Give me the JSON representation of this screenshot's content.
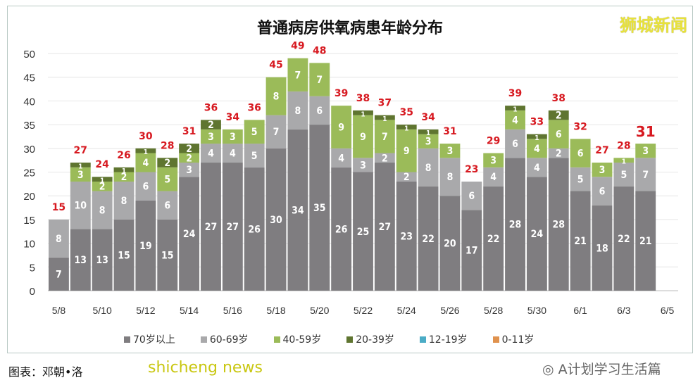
{
  "logo_text": "狮城新闻",
  "credit": "图表：邓朝•洛",
  "watermark": "shicheng news",
  "wechat_account": "A计划学习生活篇",
  "colors": {
    "70+": "#7f7d80",
    "60-69": "#a9a9ab",
    "40-59": "#9bbb59",
    "20-39": "#5f7530",
    "12-19": "#4bacc6",
    "0-11": "#e0924e",
    "total": "#d71920"
  },
  "chart_data": {
    "type": "bar",
    "stacked": true,
    "title": "普通病房供氧病患年龄分布",
    "categories": [
      "5/8",
      "5/9",
      "5/10",
      "5/11",
      "5/12",
      "5/13",
      "5/14",
      "5/15",
      "5/16",
      "5/17",
      "5/18",
      "5/19",
      "5/20",
      "5/21",
      "5/22",
      "5/23",
      "5/24",
      "5/25",
      "5/26",
      "5/27",
      "5/28",
      "5/29",
      "5/30",
      "5/31",
      "6/1",
      "6/2",
      "6/3",
      "6/4",
      "6/5"
    ],
    "x_tick_labels": [
      "5/8",
      "5/10",
      "5/12",
      "5/14",
      "5/16",
      "5/18",
      "5/20",
      "5/22",
      "5/24",
      "5/26",
      "5/28",
      "5/30",
      "6/1",
      "6/3",
      "6/5"
    ],
    "series": [
      {
        "name": "70岁以上",
        "values": [
          7,
          13,
          13,
          15,
          19,
          15,
          24,
          27,
          27,
          26,
          30,
          34,
          35,
          26,
          25,
          27,
          23,
          22,
          20,
          17,
          22,
          28,
          24,
          28,
          21,
          18,
          22,
          21,
          null
        ]
      },
      {
        "name": "60-69岁",
        "values": [
          8,
          10,
          8,
          8,
          6,
          6,
          3,
          4,
          4,
          5,
          7,
          8,
          6,
          4,
          3,
          2,
          2,
          8,
          8,
          6,
          4,
          6,
          4,
          2,
          5,
          6,
          5,
          7,
          null
        ]
      },
      {
        "name": "40-59岁",
        "values": [
          0,
          3,
          2,
          2,
          4,
          5,
          2,
          3,
          3,
          5,
          8,
          7,
          7,
          9,
          9,
          7,
          9,
          3,
          3,
          0,
          3,
          4,
          4,
          6,
          6,
          3,
          1,
          3,
          null
        ]
      },
      {
        "name": "20-39岁",
        "values": [
          0,
          1,
          1,
          1,
          1,
          2,
          2,
          2,
          0,
          0,
          0,
          0,
          0,
          0,
          1,
          1,
          1,
          1,
          0,
          0,
          0,
          1,
          1,
          2,
          0,
          0,
          0,
          0,
          null
        ]
      },
      {
        "name": "12-19岁",
        "values": [
          0,
          0,
          0,
          0,
          0,
          0,
          0,
          0,
          0,
          0,
          0,
          0,
          0,
          0,
          0,
          0,
          0,
          0,
          0,
          0,
          0,
          0,
          0,
          0,
          0,
          0,
          0,
          0,
          null
        ]
      },
      {
        "name": "0-11岁",
        "values": [
          0,
          0,
          0,
          0,
          0,
          0,
          0,
          0,
          0,
          0,
          0,
          0,
          0,
          0,
          0,
          0,
          0,
          0,
          0,
          0,
          0,
          0,
          0,
          0,
          0,
          0,
          0,
          0,
          null
        ]
      }
    ],
    "totals": [
      15,
      27,
      24,
      26,
      30,
      28,
      31,
      36,
      34,
      36,
      45,
      49,
      48,
      39,
      38,
      37,
      35,
      34,
      31,
      23,
      29,
      39,
      33,
      38,
      32,
      27,
      28,
      31,
      null
    ],
    "ylim": [
      0,
      50
    ],
    "y_ticks": [
      0,
      5,
      10,
      15,
      20,
      25,
      30,
      35,
      40,
      45,
      50
    ],
    "grid": true,
    "legend_position": "bottom"
  }
}
